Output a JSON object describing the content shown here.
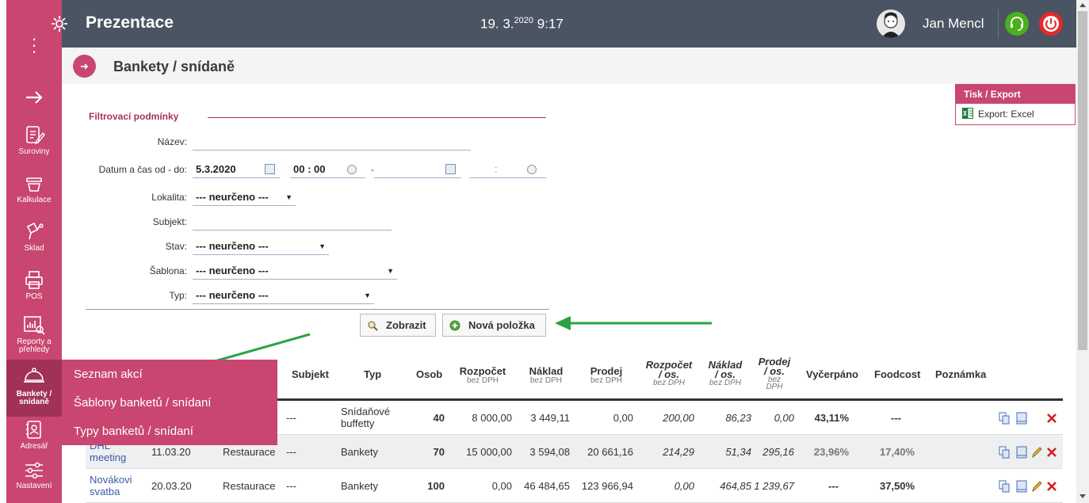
{
  "app": {
    "title": "Prezentace",
    "date": "19. 3.",
    "year": "2020",
    "time": "9:17",
    "user": "Jan Mencl"
  },
  "page": {
    "title": "Bankety / snídaně"
  },
  "export": {
    "heading": "Tisk / Export",
    "excel": "Export: Excel"
  },
  "sidebar": {
    "items": [
      {
        "label": "Suroviny",
        "icon": "pencil-note-icon"
      },
      {
        "label": "Kalkulace",
        "icon": "stack-icon"
      },
      {
        "label": "Sklad",
        "icon": "warehouse-icon"
      },
      {
        "label": "POS",
        "icon": "printer-icon"
      },
      {
        "label": "Reporty a",
        "label2": "přehledy",
        "icon": "report-chart-icon"
      },
      {
        "label": "Bankety /",
        "label2": "snídaně",
        "icon": "cloche-icon"
      },
      {
        "label": "Adresář",
        "icon": "address-book-icon"
      },
      {
        "label": "Nastavení",
        "icon": "sliders-icon"
      }
    ]
  },
  "filter": {
    "legend": "Filtrovací podmínky",
    "name_label": "Název:",
    "name_value": "",
    "datetime_label": "Datum a čas od - do:",
    "date_from": "5.3.2020",
    "time_from_h": "00",
    "time_from_m": "00",
    "date_dash": "-",
    "time_to_colon": ":",
    "location_label": "Lokalita:",
    "location_value": "--- neurčeno ---",
    "subject_label": "Subjekt:",
    "subject_value": "",
    "state_label": "Stav:",
    "state_value": "--- neurčeno ---",
    "template_label": "Šablona:",
    "template_value": "--- neurčeno ---",
    "type_label": "Typ:",
    "type_value": "--- neurčeno ---",
    "show_button": "Zobrazit",
    "new_button": "Nová položka"
  },
  "table": {
    "headers": {
      "subject": "Subjekt",
      "type": "Typ",
      "persons": "Osob",
      "budget": "Rozpočet",
      "cost": "Náklad",
      "sale": "Prodej",
      "budget_pp": "Rozpočet",
      "cost_pp": "Náklad",
      "sale_pp": "Prodej",
      "per_person": "/ os.",
      "per_person_dot": "os.",
      "used": "Vyčerpáno",
      "foodcost": "Foodcost",
      "note": "Poznámka",
      "novat": "bez DPH",
      "novat_a": "bez",
      "novat_b": "DPH"
    },
    "rows": [
      {
        "name": "",
        "name2": "",
        "date": "",
        "location": "",
        "subject": "---",
        "type": "Snídaňové",
        "type2": "buffetty",
        "persons": "40",
        "budget": "8 000,00",
        "cost": "3 449,11",
        "sale": "0,00",
        "budget_pp": "200,00",
        "cost_pp": "86,23",
        "sale_pp": "0,00",
        "used": "43,11%",
        "foodcost": "---"
      },
      {
        "name": "DHL",
        "name2": "meeting",
        "date": "11.03.20",
        "location": "Restaurace",
        "subject": "---",
        "type": "Bankety",
        "type2": "",
        "persons": "70",
        "budget": "15 000,00",
        "cost": "3 594,08",
        "sale": "20 661,16",
        "budget_pp": "214,29",
        "cost_pp": "51,34",
        "sale_pp": "295,16",
        "used": "23,96%",
        "foodcost": "17,40%"
      },
      {
        "name": "Novákovi",
        "name2": "svatba",
        "date": "20.03.20",
        "location": "Restaurace",
        "subject": "---",
        "type": "Bankety",
        "type2": "",
        "persons": "100",
        "budget": "0,00",
        "cost": "46 484,65",
        "sale": "123 966,94",
        "budget_pp": "0,00",
        "cost_pp": "464,85",
        "sale_pp": "1 239,67",
        "used": "---",
        "foodcost": "37,50%"
      }
    ]
  },
  "popup_menu": {
    "items": [
      "Seznam akcí",
      "Šablony banketů / snídaní",
      "Typy banketů / snídaní"
    ]
  },
  "colors": {
    "accent": "#c8466f",
    "header": "#4a5462",
    "arrow": "#2aa243"
  }
}
